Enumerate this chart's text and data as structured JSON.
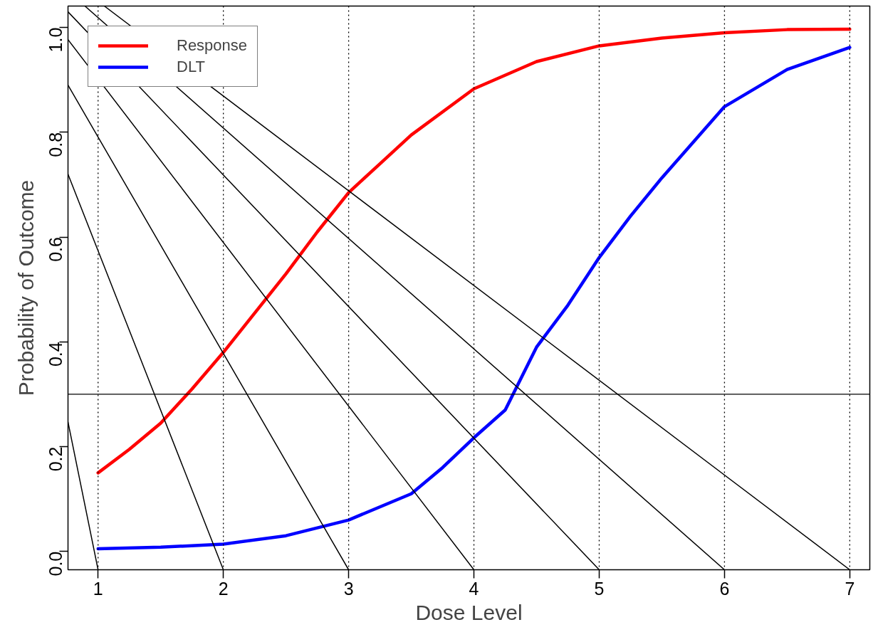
{
  "chart_data": {
    "type": "line",
    "xlabel": "Dose Level",
    "ylabel": "Probability of Outcome",
    "xlim": [
      0.76,
      7.16
    ],
    "ylim": [
      -0.035,
      1.041
    ],
    "xticks": [
      1,
      2,
      3,
      4,
      5,
      6,
      7
    ],
    "yticks": [
      {
        "value": 0,
        "label": "0.0"
      },
      {
        "value": 0.2,
        "label": "0.2"
      },
      {
        "value": 0.4,
        "label": "0.4"
      },
      {
        "value": 0.6,
        "label": "0.6"
      },
      {
        "value": 0.8,
        "label": "0.8"
      },
      {
        "value": 1,
        "label": "1.0"
      }
    ],
    "grid": false,
    "legend": "top left",
    "line_style": "solid",
    "series": [
      {
        "name": "Response",
        "color": "#ff0000",
        "x": [
          1,
          1.25,
          1.5,
          1.75,
          2,
          2.25,
          2.5,
          2.75,
          3,
          3.25,
          3.5,
          4,
          4.5,
          5,
          5.5,
          6,
          6.5,
          7
        ],
        "values": [
          0.15,
          0.195,
          0.245,
          0.31,
          0.38,
          0.455,
          0.53,
          0.61,
          0.685,
          0.74,
          0.795,
          0.883,
          0.935,
          0.965,
          0.98,
          0.99,
          0.996,
          0.997
        ]
      },
      {
        "name": "DLT",
        "color": "#0000ff",
        "x": [
          1,
          1.5,
          2,
          2.5,
          3,
          3.5,
          3.75,
          4,
          4.25,
          4.5,
          4.75,
          5,
          5.25,
          5.5,
          6,
          6.5,
          7
        ],
        "values": [
          0.005,
          0.008,
          0.014,
          0.03,
          0.06,
          0.11,
          0.16,
          0.217,
          0.27,
          0.39,
          0.47,
          0.561,
          0.64,
          0.713,
          0.849,
          0.92,
          0.962
        ]
      },
      {
        "color": "#000000",
        "x": [
          0.76,
          1
        ],
        "values": [
          0.247,
          -0.035
        ]
      },
      {
        "color": "#000000",
        "x": [
          0.76,
          2
        ],
        "values": [
          0.72,
          -0.035
        ]
      },
      {
        "color": "#000000",
        "x": [
          0.76,
          3
        ],
        "values": [
          0.89,
          -0.035
        ]
      },
      {
        "color": "#000000",
        "x": [
          0.76,
          4
        ],
        "values": [
          0.977,
          -0.035
        ]
      },
      {
        "color": "#000000",
        "x": [
          0.76,
          5
        ],
        "values": [
          1.03,
          -0.035
        ]
      },
      {
        "color": "#000000",
        "x": [
          0.895,
          6
        ],
        "values": [
          1.041,
          -0.035
        ]
      },
      {
        "color": "#000000",
        "x": [
          1.05,
          7
        ],
        "values": [
          1.041,
          -0.035
        ]
      }
    ],
    "ref_lines": [
      {
        "axis": "y",
        "value": 0.3,
        "color": "#000000",
        "line_style": "solid"
      },
      {
        "axis": "x",
        "value": 1,
        "color": "#000000",
        "line_style": "dotted"
      },
      {
        "axis": "x",
        "value": 2,
        "color": "#000000",
        "line_style": "dotted"
      },
      {
        "axis": "x",
        "value": 3,
        "color": "#000000",
        "line_style": "dotted"
      },
      {
        "axis": "x",
        "value": 4,
        "color": "#000000",
        "line_style": "dotted"
      },
      {
        "axis": "x",
        "value": 5,
        "color": "#000000",
        "line_style": "dotted"
      },
      {
        "axis": "x",
        "value": 6,
        "color": "#000000",
        "line_style": "dotted"
      },
      {
        "axis": "x",
        "value": 7,
        "color": "#000000",
        "line_style": "dotted"
      }
    ]
  }
}
